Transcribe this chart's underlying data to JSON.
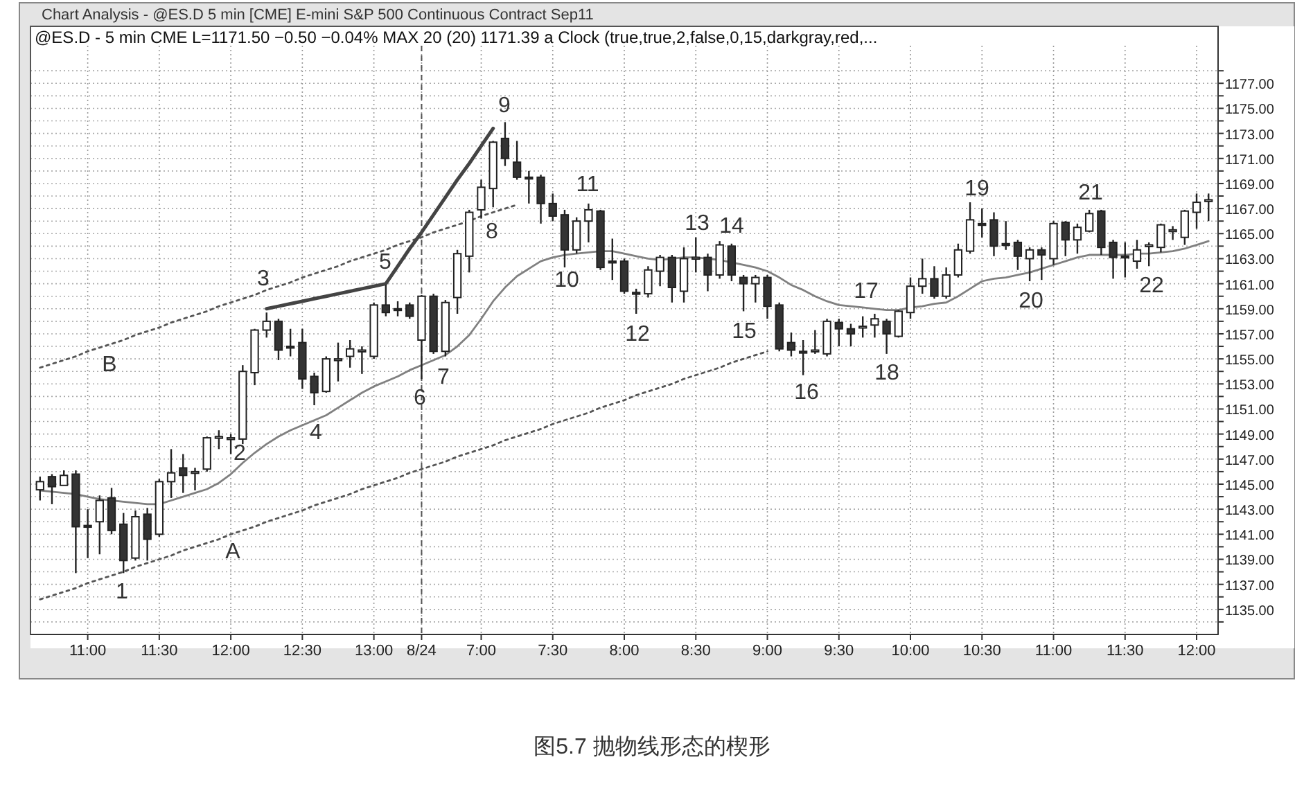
{
  "chart_data": {
    "type": "candlestick",
    "title": "Chart Analysis - @ES.D 5 min [CME] E-mini S&P 500 Continuous Contract Sep11",
    "subtitle": "@ES.D - 5 min CME    L=1171.50   −0.50   −0.04%   MAX 20 (20) 1171.39   a Clock (true,true,2,false,0,15,darkgray,red,...",
    "categories": [
      null,
      null,
      null,
      null,
      "11:00",
      null,
      null,
      null,
      null,
      null,
      "11:30",
      null,
      null,
      null,
      null,
      null,
      "12:00",
      null,
      null,
      null,
      null,
      null,
      "12:30",
      null,
      null,
      null,
      null,
      null,
      "13:00",
      null,
      null,
      null,
      "8/24",
      null,
      null,
      null,
      null,
      "7:00",
      null,
      null,
      null,
      null,
      null,
      "7:30",
      null,
      null,
      null,
      null,
      null,
      "8:00",
      null,
      null,
      null,
      null,
      null,
      "8:30",
      null,
      null,
      null,
      null,
      null,
      "9:00",
      null,
      null,
      null,
      null,
      null,
      "9:30",
      null,
      null,
      null,
      null,
      null,
      "10:00",
      null,
      null,
      null,
      null,
      null,
      "10:30",
      null,
      null,
      null,
      null,
      null,
      "11:00",
      null,
      null,
      null,
      null,
      null,
      "11:30",
      null,
      null,
      null,
      null,
      null,
      "12:00",
      null
    ],
    "ohlc": [
      [
        1144.55,
        1145.6,
        1143.7,
        1145.2
      ],
      [
        1145.6,
        1145.8,
        1143.4,
        1144.8
      ],
      [
        1144.9,
        1146.1,
        1144.9,
        1145.7
      ],
      [
        1145.8,
        1146.1,
        1137.9,
        1141.6
      ],
      [
        1141.7,
        1143.0,
        1139.1,
        1141.6
      ],
      [
        1142.0,
        1144.1,
        1139.4,
        1143.7
      ],
      [
        1143.9,
        1144.7,
        1141.0,
        1141.3
      ],
      [
        1141.8,
        1142.7,
        1137.9,
        1138.9
      ],
      [
        1139.1,
        1142.9,
        1138.9,
        1142.4
      ],
      [
        1142.6,
        1143.1,
        1138.9,
        1140.6
      ],
      [
        1141.0,
        1145.4,
        1140.8,
        1145.2
      ],
      [
        1145.2,
        1147.8,
        1143.9,
        1145.9
      ],
      [
        1146.3,
        1147.4,
        1144.3,
        1145.7
      ],
      [
        1145.9,
        1146.3,
        1144.5,
        1146.0
      ],
      [
        1146.2,
        1148.8,
        1146.0,
        1148.7
      ],
      [
        1148.7,
        1149.3,
        1147.8,
        1148.8
      ],
      [
        1148.6,
        1149.0,
        1147.4,
        1148.7
      ],
      [
        1148.6,
        1154.5,
        1148.2,
        1154.0
      ],
      [
        1153.9,
        1157.4,
        1152.9,
        1157.3
      ],
      [
        1157.3,
        1158.7,
        1156.7,
        1158.0
      ],
      [
        1158.0,
        1158.2,
        1154.9,
        1155.7
      ],
      [
        1156.0,
        1157.4,
        1155.2,
        1155.9
      ],
      [
        1156.3,
        1157.4,
        1152.6,
        1153.4
      ],
      [
        1153.6,
        1153.9,
        1151.3,
        1152.3
      ],
      [
        1152.4,
        1155.2,
        1152.3,
        1155.0
      ],
      [
        1154.9,
        1156.3,
        1153.2,
        1155.0
      ],
      [
        1155.2,
        1156.5,
        1154.3,
        1155.8
      ],
      [
        1155.6,
        1156.0,
        1153.8,
        1155.7
      ],
      [
        1155.2,
        1159.5,
        1155.0,
        1159.3
      ],
      [
        1159.3,
        1160.9,
        1158.4,
        1158.7
      ],
      [
        1159.0,
        1159.6,
        1158.4,
        1158.9
      ],
      [
        1159.3,
        1159.5,
        1158.2,
        1158.4
      ],
      [
        1156.5,
        1160.1,
        1153.4,
        1160.0
      ],
      [
        1160.0,
        1160.2,
        1155.4,
        1155.6
      ],
      [
        1155.6,
        1159.7,
        1155.2,
        1159.5
      ],
      [
        1159.9,
        1163.7,
        1158.6,
        1163.4
      ],
      [
        1163.2,
        1166.9,
        1161.9,
        1166.7
      ],
      [
        1166.9,
        1169.3,
        1166.2,
        1168.7
      ],
      [
        1168.6,
        1172.4,
        1167.1,
        1172.3
      ],
      [
        1172.6,
        1173.9,
        1170.4,
        1171.0
      ],
      [
        1170.7,
        1172.4,
        1169.3,
        1169.5
      ],
      [
        1169.5,
        1170.0,
        1167.4,
        1169.4
      ],
      [
        1169.5,
        1169.7,
        1165.8,
        1167.4
      ],
      [
        1167.4,
        1168.2,
        1166.0,
        1166.4
      ],
      [
        1166.5,
        1166.9,
        1162.3,
        1163.7
      ],
      [
        1163.7,
        1166.3,
        1163.4,
        1166.0
      ],
      [
        1166.0,
        1167.4,
        1164.3,
        1166.9
      ],
      [
        1166.8,
        1166.9,
        1162.1,
        1162.3
      ],
      [
        1162.8,
        1164.6,
        1161.3,
        1162.7
      ],
      [
        1162.8,
        1163.0,
        1160.2,
        1160.4
      ],
      [
        1160.3,
        1160.6,
        1158.6,
        1160.2
      ],
      [
        1160.2,
        1162.4,
        1159.9,
        1162.1
      ],
      [
        1162.0,
        1163.3,
        1160.8,
        1163.1
      ],
      [
        1163.1,
        1163.3,
        1159.5,
        1160.7
      ],
      [
        1160.4,
        1163.9,
        1159.5,
        1163.0
      ],
      [
        1163.0,
        1164.7,
        1161.9,
        1163.1
      ],
      [
        1163.1,
        1163.4,
        1160.4,
        1161.7
      ],
      [
        1161.7,
        1164.4,
        1161.4,
        1164.1
      ],
      [
        1164.0,
        1164.2,
        1161.2,
        1161.7
      ],
      [
        1161.5,
        1161.7,
        1158.8,
        1161.0
      ],
      [
        1161.0,
        1161.7,
        1159.5,
        1161.5
      ],
      [
        1161.5,
        1161.7,
        1158.2,
        1159.2
      ],
      [
        1159.3,
        1159.5,
        1155.6,
        1155.8
      ],
      [
        1156.3,
        1157.1,
        1155.2,
        1155.7
      ],
      [
        1155.6,
        1156.5,
        1153.7,
        1155.5
      ],
      [
        1155.6,
        1157.3,
        1155.4,
        1155.7
      ],
      [
        1155.4,
        1158.2,
        1155.2,
        1158.0
      ],
      [
        1157.9,
        1158.2,
        1156.0,
        1157.4
      ],
      [
        1157.4,
        1157.8,
        1156.0,
        1157.0
      ],
      [
        1157.5,
        1158.4,
        1156.7,
        1157.6
      ],
      [
        1157.7,
        1158.6,
        1156.7,
        1158.2
      ],
      [
        1158.0,
        1158.2,
        1155.4,
        1157.0
      ],
      [
        1156.8,
        1158.9,
        1156.7,
        1158.8
      ],
      [
        1158.7,
        1161.5,
        1158.2,
        1160.8
      ],
      [
        1160.8,
        1163.0,
        1160.2,
        1161.4
      ],
      [
        1161.4,
        1162.4,
        1159.8,
        1160.0
      ],
      [
        1160.0,
        1162.3,
        1159.8,
        1161.7
      ],
      [
        1161.7,
        1164.2,
        1161.5,
        1163.7
      ],
      [
        1163.6,
        1167.5,
        1163.4,
        1166.1
      ],
      [
        1165.8,
        1167.0,
        1164.7,
        1165.7
      ],
      [
        1166.1,
        1166.7,
        1163.2,
        1164.0
      ],
      [
        1164.2,
        1166.0,
        1163.7,
        1164.1
      ],
      [
        1164.3,
        1164.5,
        1162.1,
        1163.2
      ],
      [
        1163.0,
        1163.9,
        1161.2,
        1163.7
      ],
      [
        1163.7,
        1163.9,
        1161.3,
        1163.3
      ],
      [
        1163.0,
        1166.0,
        1162.5,
        1165.8
      ],
      [
        1165.9,
        1166.0,
        1163.2,
        1164.5
      ],
      [
        1164.5,
        1165.8,
        1163.4,
        1165.5
      ],
      [
        1165.2,
        1166.9,
        1165.1,
        1166.6
      ],
      [
        1166.8,
        1166.9,
        1163.3,
        1163.9
      ],
      [
        1164.3,
        1164.5,
        1161.4,
        1163.1
      ],
      [
        1163.2,
        1164.3,
        1161.5,
        1163.1
      ],
      [
        1162.8,
        1164.5,
        1162.2,
        1163.7
      ],
      [
        1164.0,
        1164.3,
        1162.4,
        1164.1
      ],
      [
        1163.9,
        1165.8,
        1163.5,
        1165.7
      ],
      [
        1165.2,
        1165.6,
        1164.5,
        1165.3
      ],
      [
        1164.7,
        1166.9,
        1164.1,
        1166.8
      ],
      [
        1166.7,
        1168.2,
        1165.4,
        1167.5
      ],
      [
        1167.6,
        1168.2,
        1166.0,
        1167.7
      ]
    ],
    "series": [
      {
        "type": "line",
        "color": "#808080",
        "values": [
          1144.5,
          1144.4,
          1144.3,
          1144.2,
          1144.0,
          1143.8,
          1143.7,
          1143.6,
          1143.5,
          1143.4,
          1143.4,
          1143.7,
          1144.0,
          1144.3,
          1144.6,
          1145.1,
          1145.8,
          1146.7,
          1147.5,
          1148.2,
          1148.8,
          1149.3,
          1149.7,
          1150.1,
          1150.5,
          1151.1,
          1151.7,
          1152.3,
          1152.8,
          1153.2,
          1153.6,
          1154.1,
          1154.5,
          1154.9,
          1155.3,
          1156.0,
          1156.9,
          1158.2,
          1159.6,
          1160.7,
          1161.6,
          1162.2,
          1162.8,
          1163.1,
          1163.3,
          1163.4,
          1163.5,
          1163.6,
          1163.6,
          1163.4,
          1163.2,
          1163.0,
          1162.9,
          1163.0,
          1163.1,
          1163.1,
          1163.0,
          1162.9,
          1162.7,
          1162.5,
          1162.3,
          1162.0,
          1161.5,
          1160.9,
          1160.5,
          1160.0,
          1159.6,
          1159.3,
          1159.2,
          1159.1,
          1159.0,
          1158.9,
          1158.9,
          1159.1,
          1159.2,
          1159.4,
          1159.5,
          1160.0,
          1160.6,
          1161.2,
          1161.4,
          1161.5,
          1161.7,
          1161.9,
          1162.2,
          1162.5,
          1162.8,
          1163.1,
          1163.3,
          1163.3,
          1163.3,
          1163.3,
          1163.4,
          1163.4,
          1163.5,
          1163.6,
          1163.8,
          1164.1,
          1164.4
        ]
      },
      {
        "type": "line",
        "color": "#555555",
        "line_style": "dotted",
        "values": [
          1135.8,
          1136.1,
          1136.4,
          1136.7,
          1137.1,
          1137.4,
          1137.7,
          1138.0,
          1138.4,
          1138.7,
          1139.0,
          1139.3,
          1139.7,
          1140.0,
          1140.3,
          1140.6,
          1141.0,
          1141.3,
          1141.6,
          1142.0,
          1142.3,
          1142.6,
          1142.9,
          1143.3,
          1143.6,
          1143.9,
          1144.2,
          1144.6,
          1144.9,
          1145.2,
          1145.5,
          1145.9,
          1146.2,
          1146.5,
          1146.8,
          1147.2,
          1147.5,
          1147.8,
          1148.1,
          1148.5,
          1148.8,
          1149.1,
          1149.4,
          1149.8,
          1150.1,
          1150.4,
          1150.7,
          1151.1,
          1151.4,
          1151.7,
          1152.1,
          1152.4,
          1152.7,
          1153.0,
          1153.4,
          1153.7,
          1154.0,
          1154.3,
          1154.7,
          1155.0,
          1155.3,
          1155.6,
          null,
          null,
          null,
          null,
          null,
          null,
          null,
          null,
          null,
          null,
          null,
          null,
          null,
          null,
          null,
          null,
          null,
          null,
          null,
          null,
          null,
          null,
          null,
          null,
          null,
          null,
          null,
          null,
          null,
          null,
          null,
          null,
          null,
          null,
          null,
          null,
          null
        ]
      },
      {
        "type": "line",
        "color": "#555555",
        "line_style": "dotted",
        "values": [
          1154.3,
          1154.6,
          1154.9,
          1155.2,
          1155.6,
          1155.9,
          1156.2,
          1156.5,
          1156.9,
          1157.2,
          1157.5,
          1157.9,
          1158.2,
          1158.5,
          1158.8,
          1159.2,
          1159.5,
          1159.8,
          1160.1,
          1160.5,
          1160.8,
          1161.1,
          1161.5,
          1161.8,
          1162.1,
          1162.4,
          1162.8,
          1163.1,
          1163.4,
          1163.7,
          1164.1,
          1164.4,
          1164.7,
          1165.1,
          1165.4,
          1165.7,
          1166.0,
          1166.4,
          1166.7,
          1167.0,
          1167.3,
          null,
          null,
          null,
          null,
          null,
          null,
          null,
          null,
          null,
          null,
          null,
          null,
          null,
          null,
          null,
          null,
          null,
          null,
          null,
          null,
          null,
          null,
          null,
          null,
          null,
          null,
          null,
          null,
          null,
          null,
          null,
          null,
          null,
          null,
          null,
          null,
          null,
          null,
          null,
          null,
          null,
          null,
          null,
          null,
          null,
          null,
          null,
          null,
          null,
          null,
          null,
          null,
          null,
          null,
          null,
          null,
          null,
          null
        ]
      },
      {
        "type": "line",
        "color": "#444444",
        "line_style": "solid",
        "values": [
          null,
          null,
          null,
          null,
          null,
          null,
          null,
          null,
          null,
          null,
          null,
          null,
          null,
          null,
          null,
          null,
          null,
          null,
          null,
          1159.0,
          1159.2,
          1159.4,
          1159.6,
          1159.8,
          1160.0,
          1160.2,
          1160.4,
          1160.6,
          1160.8,
          1161.0,
          1162.4,
          1163.8,
          1165.1,
          1166.5,
          1167.9,
          1169.3,
          1170.6,
          1172.0,
          1173.4,
          null,
          null,
          null,
          null,
          null,
          null,
          null,
          null,
          null,
          null,
          null,
          null,
          null,
          null,
          null,
          null,
          null,
          null,
          null,
          null,
          null,
          null,
          null,
          null,
          null,
          null,
          null,
          null,
          null,
          null,
          null,
          null,
          null,
          null,
          null,
          null,
          null,
          null,
          null,
          null,
          null,
          null,
          null,
          null,
          null,
          null,
          null,
          null,
          null,
          null,
          null,
          null,
          null,
          null,
          null,
          null,
          null,
          null,
          null,
          null
        ]
      }
    ],
    "ylim": [
      1133,
      1180
    ],
    "yticks": [
      {
        "value": 1134,
        "label": null
      },
      {
        "value": 1135,
        "label": "1135.00"
      },
      {
        "value": 1136,
        "label": null
      },
      {
        "value": 1137,
        "label": "1137.00"
      },
      {
        "value": 1138,
        "label": null
      },
      {
        "value": 1139,
        "label": "1139.00"
      },
      {
        "value": 1140,
        "label": null
      },
      {
        "value": 1141,
        "label": "1141.00"
      },
      {
        "value": 1142,
        "label": null
      },
      {
        "value": 1143,
        "label": "1143.00"
      },
      {
        "value": 1144,
        "label": null
      },
      {
        "value": 1145,
        "label": "1145.00"
      },
      {
        "value": 1146,
        "label": null
      },
      {
        "value": 1147,
        "label": "1147.00"
      },
      {
        "value": 1148,
        "label": null
      },
      {
        "value": 1149,
        "label": "1149.00"
      },
      {
        "value": 1150,
        "label": null
      },
      {
        "value": 1151,
        "label": "1151.00"
      },
      {
        "value": 1152,
        "label": null
      },
      {
        "value": 1153,
        "label": "1153.00"
      },
      {
        "value": 1154,
        "label": null
      },
      {
        "value": 1155,
        "label": "1155.00"
      },
      {
        "value": 1156,
        "label": null
      },
      {
        "value": 1157,
        "label": "1157.00"
      },
      {
        "value": 1158,
        "label": null
      },
      {
        "value": 1159,
        "label": "1159.00"
      },
      {
        "value": 1160,
        "label": null
      },
      {
        "value": 1161,
        "label": "1161.00"
      },
      {
        "value": 1162,
        "label": null
      },
      {
        "value": 1163,
        "label": "1163.00"
      },
      {
        "value": 1164,
        "label": null
      },
      {
        "value": 1165,
        "label": "1165.00"
      },
      {
        "value": 1166,
        "label": null
      },
      {
        "value": 1167,
        "label": "1167.00"
      },
      {
        "value": 1168,
        "label": null
      },
      {
        "value": 1169,
        "label": "1169.00"
      },
      {
        "value": 1170,
        "label": null
      },
      {
        "value": 1171,
        "label": "1171.00"
      },
      {
        "value": 1172,
        "label": null
      },
      {
        "value": 1173,
        "label": "1173.00"
      },
      {
        "value": 1174,
        "label": null
      },
      {
        "value": 1175,
        "label": "1175.00"
      },
      {
        "value": 1176,
        "label": null
      },
      {
        "value": 1177,
        "label": "1177.00"
      },
      {
        "value": 1178,
        "label": null
      }
    ],
    "grid": true,
    "ref_lines": [
      {
        "axis": "x",
        "value": "8/24",
        "color": "#555555",
        "line_style": "dashed"
      }
    ],
    "annotations": [
      "1",
      "2",
      "3",
      "4",
      "5",
      "6",
      "7",
      "8",
      "9",
      "10",
      "11",
      "12",
      "13",
      "14",
      "15",
      "16",
      "17",
      "18",
      "19",
      "20",
      "21",
      "22",
      "A",
      "B",
      "图5.7   抛物线形态的楔形"
    ]
  }
}
